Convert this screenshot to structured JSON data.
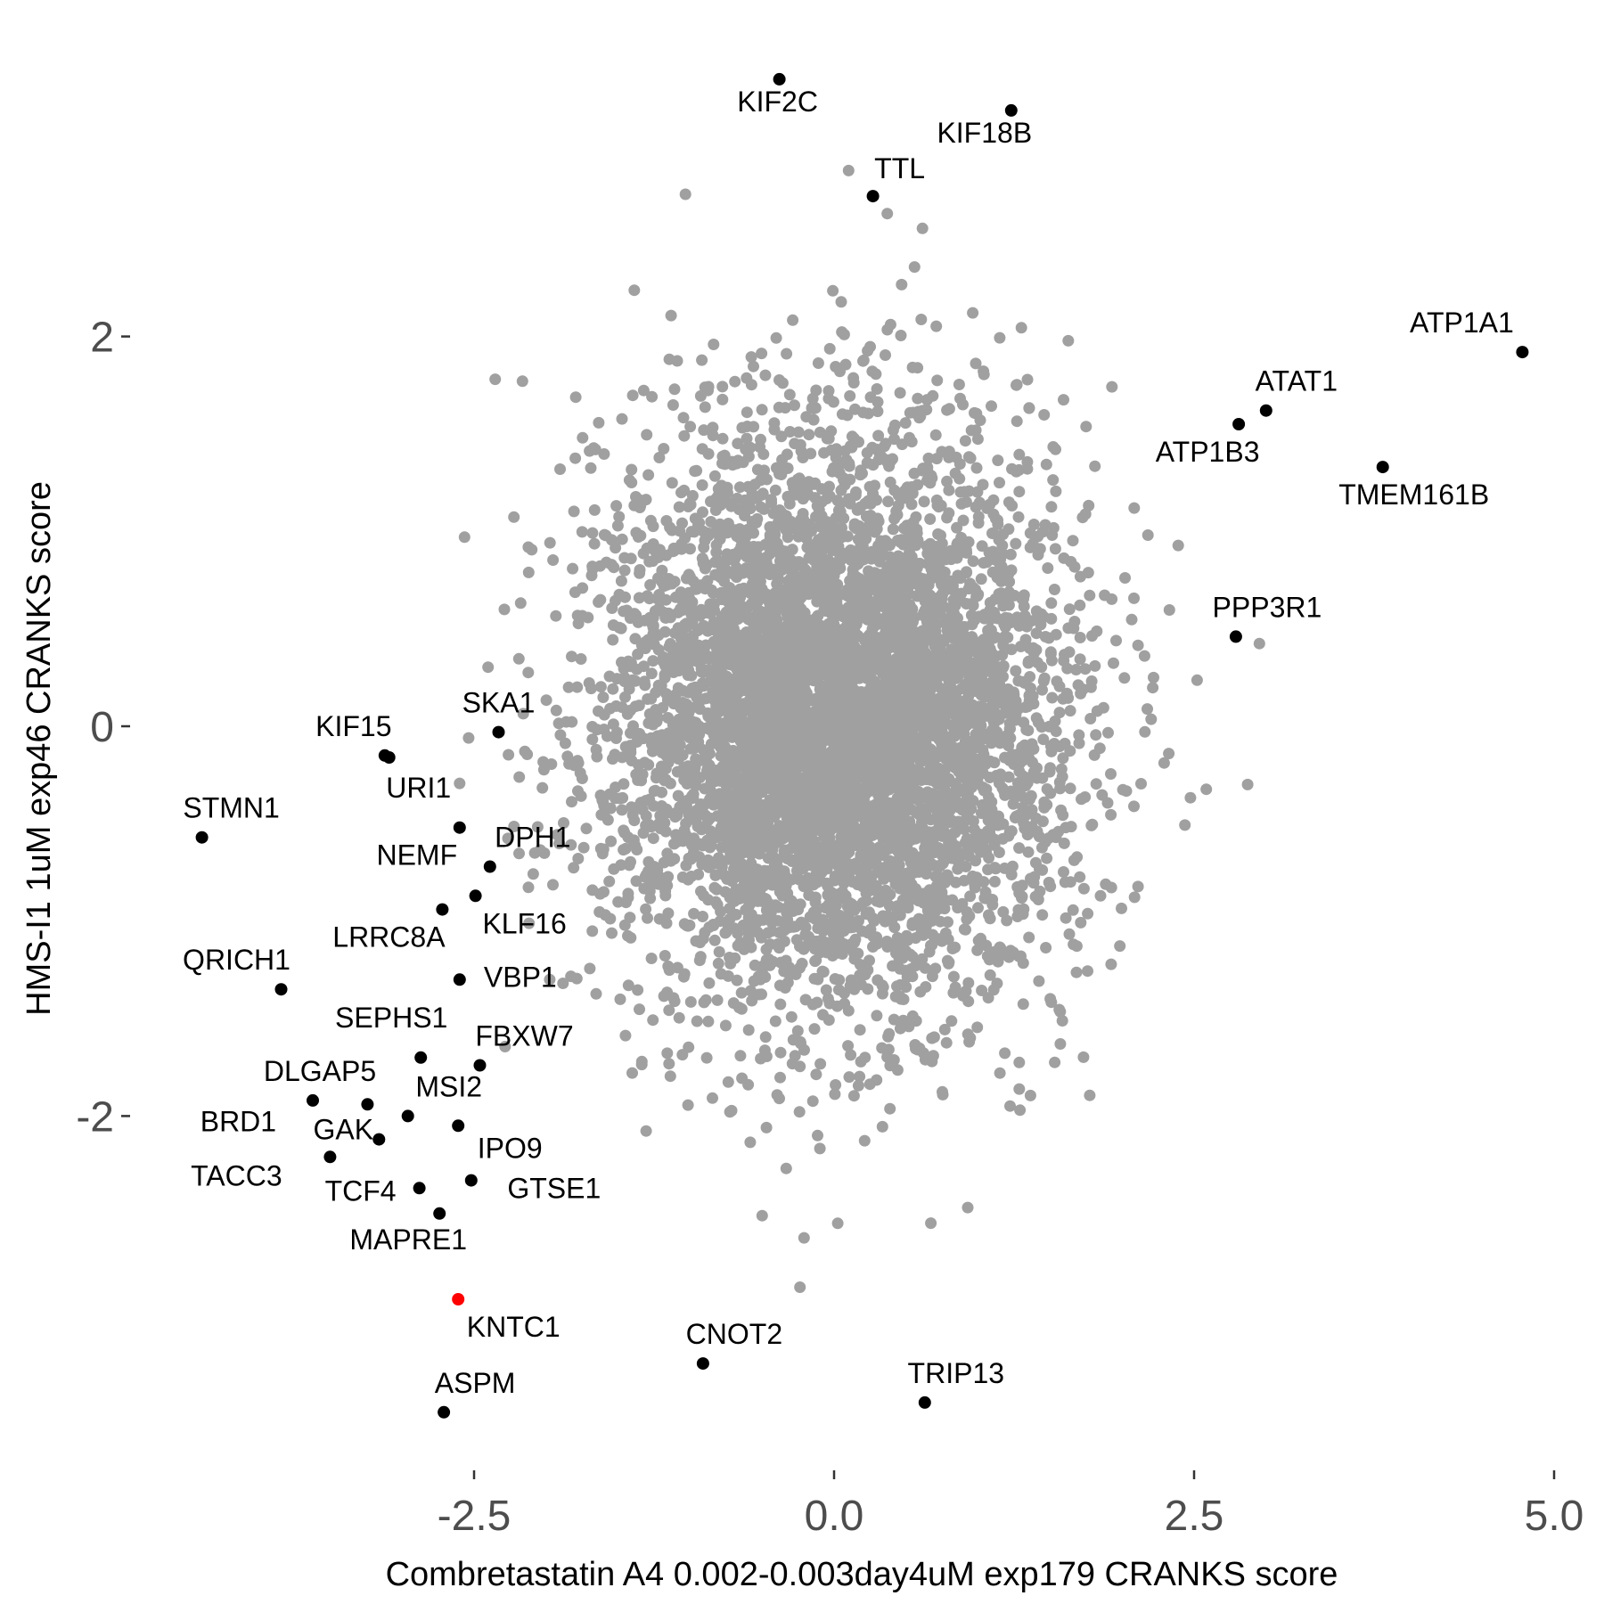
{
  "chart_data": {
    "type": "scatter",
    "title": "",
    "xlabel": "Combretastatin A4 0.002-0.003day4uM exp179 CRANKS score",
    "ylabel": "HMS-I1 1uM exp46 CRANKS score",
    "xlim": [
      -4.6,
      5.0
    ],
    "ylim": [
      -3.85,
      3.32
    ],
    "x_ticks": [
      {
        "value": -2.5,
        "label": "-2.5"
      },
      {
        "value": 0.0,
        "label": "0.0"
      },
      {
        "value": 2.5,
        "label": "2.5"
      },
      {
        "value": 5.0,
        "label": "5.0"
      }
    ],
    "y_ticks": [
      {
        "value": 2,
        "label": "2"
      },
      {
        "value": 0,
        "label": "0"
      },
      {
        "value": -2,
        "label": "-2"
      }
    ],
    "grid": false,
    "legend": "none",
    "colors": {
      "background_points": "#a0a0a0",
      "highlight_points": "#000000",
      "focus_point": "#ff0000",
      "tick_text": "#4d4d4d"
    },
    "background_series": {
      "name": "",
      "count": 6000,
      "x_mean": 0.0,
      "x_sd": 0.78,
      "y_mean": 0.05,
      "y_sd": 0.72,
      "x_range": [
        -2.6,
        3.05
      ],
      "y_range": [
        -2.95,
        2.92
      ]
    },
    "labeled_points": [
      {
        "label": "KIF2C",
        "x": -0.38,
        "y": 3.32,
        "color": "#000000"
      },
      {
        "label": "KIF18B",
        "x": 1.23,
        "y": 3.16,
        "color": "#000000"
      },
      {
        "label": "TTL",
        "x": 0.27,
        "y": 2.72,
        "color": "#000000"
      },
      {
        "label": "ATP1A1",
        "x": 4.78,
        "y": 1.92,
        "color": "#000000"
      },
      {
        "label": "ATAT1",
        "x": 3.0,
        "y": 1.62,
        "color": "#000000"
      },
      {
        "label": "ATP1B3",
        "x": 2.81,
        "y": 1.55,
        "color": "#000000"
      },
      {
        "label": "TMEM161B",
        "x": 3.81,
        "y": 1.33,
        "color": "#000000"
      },
      {
        "label": "PPP3R1",
        "x": 2.79,
        "y": 0.46,
        "color": "#000000"
      },
      {
        "label": "SKA1",
        "x": -2.33,
        "y": -0.03,
        "color": "#000000"
      },
      {
        "label": "KIF15",
        "x": -3.12,
        "y": -0.15,
        "color": "#000000"
      },
      {
        "label": "URI1",
        "x": -3.09,
        "y": -0.16,
        "color": "#000000"
      },
      {
        "label": "STMN1",
        "x": -4.39,
        "y": -0.57,
        "color": "#000000"
      },
      {
        "label": "NEMF",
        "x": -2.6,
        "y": -0.52,
        "color": "#000000"
      },
      {
        "label": "DPH1",
        "x": -2.39,
        "y": -0.72,
        "color": "#000000"
      },
      {
        "label": "LRRC8A",
        "x": -2.72,
        "y": -0.94,
        "color": "#000000"
      },
      {
        "label": "KLF16",
        "x": -2.49,
        "y": -0.87,
        "color": "#000000"
      },
      {
        "label": "QRICH1",
        "x": -3.84,
        "y": -1.35,
        "color": "#000000"
      },
      {
        "label": "VBP1",
        "x": -2.6,
        "y": -1.3,
        "color": "#000000"
      },
      {
        "label": "SEPHS1",
        "x": -2.87,
        "y": -1.7,
        "color": "#000000"
      },
      {
        "label": "FBXW7",
        "x": -2.46,
        "y": -1.74,
        "color": "#000000"
      },
      {
        "label": "DLGAP5",
        "x": -3.62,
        "y": -1.92,
        "color": "#000000"
      },
      {
        "label": "BRD1",
        "x": -3.24,
        "y": -1.94,
        "color": "#000000"
      },
      {
        "label": "MSI2",
        "x": -2.96,
        "y": -2.0,
        "color": "#000000"
      },
      {
        "label": "GAK",
        "x": -3.16,
        "y": -2.12,
        "color": "#000000"
      },
      {
        "label": "IPO9",
        "x": -2.61,
        "y": -2.05,
        "color": "#000000"
      },
      {
        "label": "TACC3",
        "x": -3.5,
        "y": -2.21,
        "color": "#000000"
      },
      {
        "label": "TCF4",
        "x": -2.88,
        "y": -2.37,
        "color": "#000000"
      },
      {
        "label": "GTSE1",
        "x": -2.52,
        "y": -2.33,
        "color": "#000000"
      },
      {
        "label": "MAPRE1",
        "x": -2.74,
        "y": -2.5,
        "color": "#000000"
      },
      {
        "label": "KNTC1",
        "x": -2.61,
        "y": -2.94,
        "color": "#ff0000"
      },
      {
        "label": "CNOT2",
        "x": -0.91,
        "y": -3.27,
        "color": "#000000"
      },
      {
        "label": "TRIP13",
        "x": 0.63,
        "y": -3.47,
        "color": "#000000"
      },
      {
        "label": "ASPM",
        "x": -2.71,
        "y": -3.52,
        "color": "#000000"
      }
    ]
  }
}
